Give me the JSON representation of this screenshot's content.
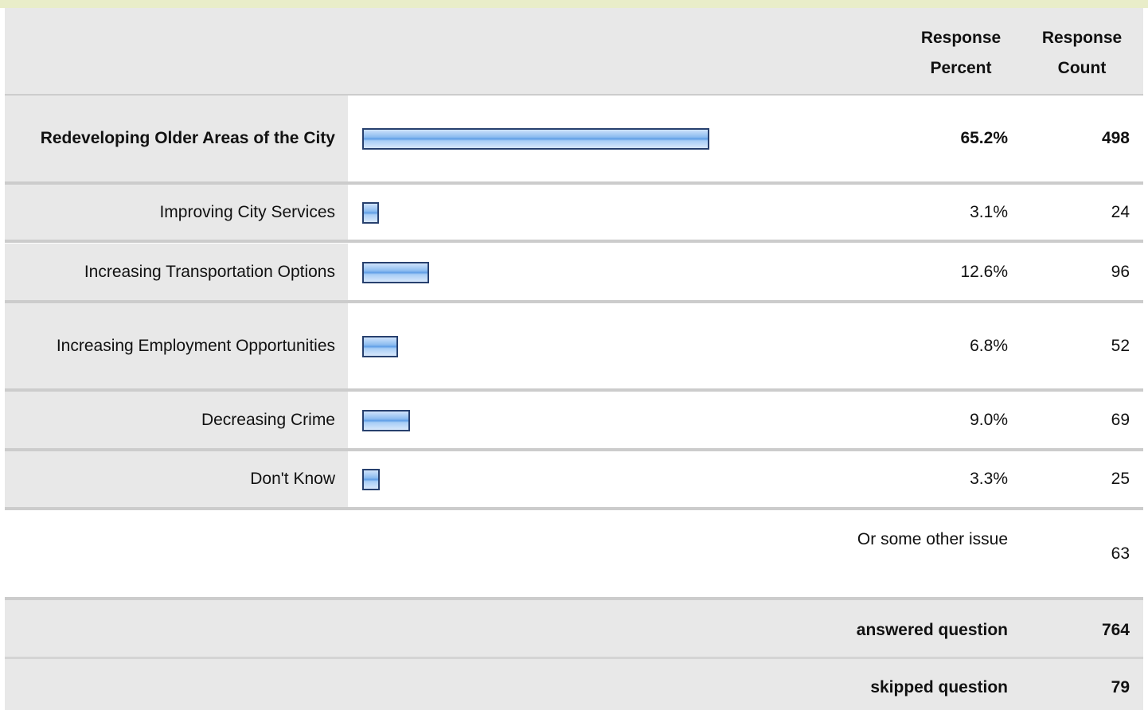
{
  "header": {
    "columns": [
      "Response Percent",
      "Response Count"
    ]
  },
  "rows": [
    {
      "label": "Redeveloping Older Areas of the City",
      "percent": 65.2,
      "percent_label": "65.2%",
      "count": 498
    },
    {
      "label": "Improving City Services",
      "percent": 3.1,
      "percent_label": "3.1%",
      "count": 24
    },
    {
      "label": "Increasing Transportation Options",
      "percent": 12.6,
      "percent_label": "12.6%",
      "count": 96
    },
    {
      "label": "Increasing Employment Opportunities",
      "percent": 6.8,
      "percent_label": "6.8%",
      "count": 52
    },
    {
      "label": "Decreasing Crime",
      "percent": 9.0,
      "percent_label": "9.0%",
      "count": 69
    },
    {
      "label": "Don't Know",
      "percent": 3.3,
      "percent_label": "3.3%",
      "count": 25
    }
  ],
  "other": {
    "label": "Or some other issue",
    "count": 63
  },
  "footer": {
    "answered": {
      "label": "answered question",
      "count": 764
    },
    "skipped": {
      "label": "skipped question",
      "count": 79
    }
  }
}
